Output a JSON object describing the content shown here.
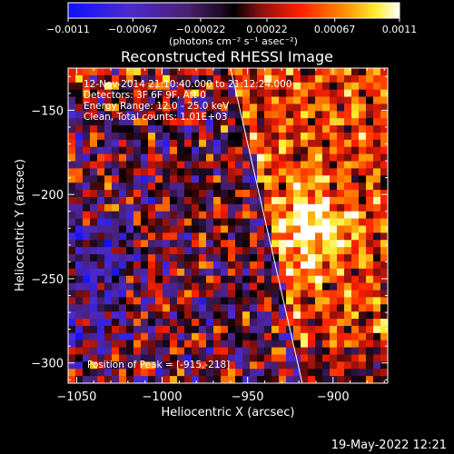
{
  "chart_data": {
    "type": "heatmap",
    "title": "Reconstructed RHESSI Image",
    "xlabel": "Heliocentric X (arcsec)",
    "ylabel": "Heliocentric Y (arcsec)",
    "xlim": [
      -1055,
      -868
    ],
    "ylim": [
      -312,
      -125
    ],
    "x_ticks": [
      -1050,
      -1000,
      -950,
      -900
    ],
    "x_tick_labels": [
      "−1050",
      "−1000",
      "−950",
      "−900"
    ],
    "y_ticks": [
      -150,
      -200,
      -250,
      -300
    ],
    "y_tick_labels": [
      "−150",
      "−200",
      "−250",
      "−300"
    ],
    "colorbar": {
      "min": -0.0011,
      "max": 0.0011,
      "ticks": [
        -0.0011,
        -0.00067,
        -0.00022,
        0.00022,
        0.00067,
        0.0011
      ],
      "tick_labels": [
        "−0.0011",
        "−0.00067",
        "−0.00022",
        "0.00022",
        "0.00067",
        "0.0011"
      ],
      "unit_label": "(photons cm⁻² s⁻¹ asec⁻²)"
    },
    "annotations": [
      "12-Nov-2014 21:10:40.000 to 21:12:24.000",
      "Detectors: 3F 6F 9F, Att 0",
      "Energy Range: 12.0 - 25.0 keV",
      "Clean, Total counts: 1.01E+03"
    ],
    "peak_label": "Position of Peak = [-915,-218]",
    "peak": {
      "x": -915,
      "y": -218
    },
    "limb_line": {
      "x": [
        -960,
        -918
      ],
      "y": [
        -125,
        -312
      ]
    }
  },
  "footer": {
    "date": "19-May-2022 12:21"
  }
}
